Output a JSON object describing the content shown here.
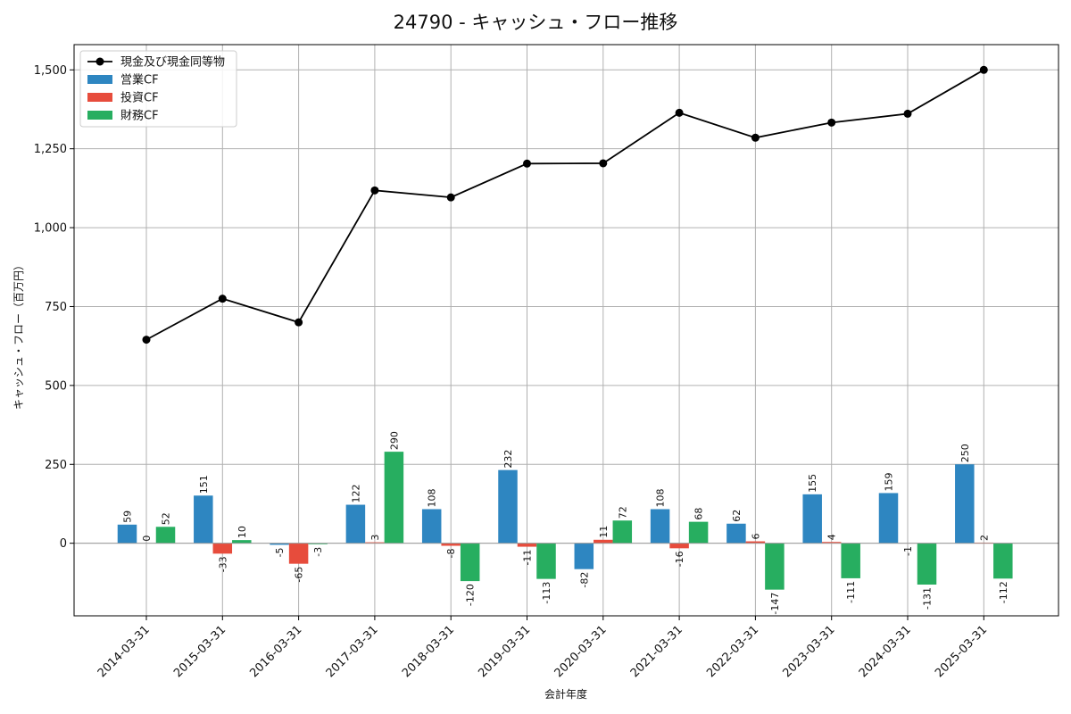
{
  "chart_data": {
    "type": "bar",
    "title": "24790 - キャッシュ・フロー推移",
    "xlabel": "会計年度",
    "ylabel": "キャッシュ・フロー（百万円）",
    "categories": [
      "2014-03-31",
      "2015-03-31",
      "2016-03-31",
      "2017-03-31",
      "2018-03-31",
      "2019-03-31",
      "2020-03-31",
      "2021-03-31",
      "2022-03-31",
      "2023-03-31",
      "2024-03-31",
      "2025-03-31"
    ],
    "ylim": [
      -230,
      1580
    ],
    "yticks": [
      0,
      250,
      500,
      750,
      1000,
      1250,
      1500
    ],
    "ytick_labels": [
      "0",
      "250",
      "500",
      "750",
      "1,000",
      "1,250",
      "1,500"
    ],
    "grid": true,
    "legend_position": "top-left",
    "series": [
      {
        "name": "営業CF",
        "kind": "bar",
        "color": "#2e86c1",
        "values": [
          59,
          151,
          -5,
          122,
          108,
          232,
          -82,
          108,
          62,
          155,
          159,
          250
        ]
      },
      {
        "name": "投資CF",
        "kind": "bar",
        "color": "#e74c3c",
        "values": [
          0,
          -33,
          -65,
          3,
          -8,
          -11,
          11,
          -16,
          6,
          4,
          -1,
          2
        ]
      },
      {
        "name": "財務CF",
        "kind": "bar",
        "color": "#27ae60",
        "values": [
          52,
          10,
          -3,
          290,
          -120,
          -113,
          72,
          68,
          -147,
          -111,
          -131,
          -112
        ]
      },
      {
        "name": "現金及び現金同等物",
        "kind": "line",
        "color": "#000000",
        "values": [
          645,
          775,
          700,
          1118,
          1096,
          1203,
          1204,
          1364,
          1285,
          1333,
          1361,
          1500
        ]
      }
    ]
  }
}
